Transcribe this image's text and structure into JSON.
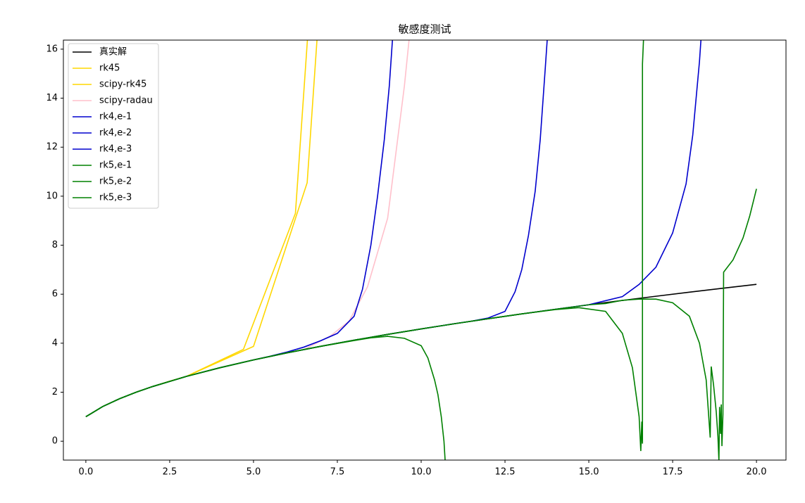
{
  "chart_data": {
    "type": "line",
    "title": "敏感度测试",
    "xlim": [
      -0.67,
      20.88
    ],
    "ylim": [
      -0.77,
      16.37
    ],
    "xticks": [
      {
        "value": 0,
        "label": "0.0"
      },
      {
        "value": 2.5,
        "label": "2.5"
      },
      {
        "value": 5,
        "label": "5.0"
      },
      {
        "value": 7.5,
        "label": "7.5"
      },
      {
        "value": 10,
        "label": "10.0"
      },
      {
        "value": 12.5,
        "label": "12.5"
      },
      {
        "value": 15,
        "label": "15.0"
      },
      {
        "value": 17.5,
        "label": "17.5"
      },
      {
        "value": 20,
        "label": "20.0"
      }
    ],
    "yticks": [
      0,
      2,
      4,
      6,
      8,
      10,
      12,
      14,
      16
    ],
    "legend": "upper left",
    "series": [
      {
        "name": "真实解",
        "color": "#000000",
        "x": [
          0,
          0.5,
          1,
          1.5,
          2,
          3,
          4,
          5,
          6,
          7,
          8,
          9,
          10,
          11,
          12,
          13,
          14,
          15,
          16,
          17,
          18,
          19,
          20
        ],
        "values": [
          1,
          1.414,
          1.732,
          2,
          2.236,
          2.646,
          3,
          3.317,
          3.606,
          3.873,
          4.123,
          4.359,
          4.583,
          4.796,
          5,
          5.196,
          5.385,
          5.568,
          5.745,
          5.916,
          6.083,
          6.245,
          6.403
        ]
      },
      {
        "name": "rk45",
        "color": "#ffd700",
        "x": [
          0,
          0.5,
          1,
          1.5,
          2,
          2.5,
          3,
          4.7,
          6.25,
          6.7
        ],
        "values": [
          1,
          1.414,
          1.732,
          2,
          2.236,
          2.449,
          2.646,
          3.75,
          9.3,
          18.2
        ]
      },
      {
        "name": "scipy-rk45",
        "color": "#ffd700",
        "x": [
          0,
          0.5,
          1,
          1.5,
          2,
          2.5,
          3,
          5,
          6.6,
          7
        ],
        "values": [
          1,
          1.414,
          1.732,
          2,
          2.236,
          2.449,
          2.646,
          3.87,
          10.55,
          18.5
        ]
      },
      {
        "name": "scipy-radau",
        "color": "#ffc0cb",
        "x": [
          0,
          0.5,
          1,
          1.5,
          2,
          3,
          4,
          5,
          6,
          6.5,
          7.3,
          7.85,
          8.4,
          9,
          9.5,
          9.7
        ],
        "values": [
          1,
          1.414,
          1.732,
          2,
          2.236,
          2.646,
          3,
          3.317,
          3.606,
          3.74,
          4.3,
          4.9,
          6.3,
          9.1,
          14.5,
          17.2
        ]
      },
      {
        "name": "rk4,e-1",
        "color": "#0000cd",
        "x": [
          0,
          0.5,
          1,
          1.5,
          2,
          3,
          4,
          5,
          5.5,
          6,
          6.5,
          7,
          7.5,
          8,
          8.25,
          8.5,
          8.7,
          8.9,
          9.05,
          9.15,
          9.25
        ],
        "values": [
          1,
          1.414,
          1.732,
          2,
          2.236,
          2.646,
          3,
          3.32,
          3.47,
          3.64,
          3.84,
          4.1,
          4.4,
          5.1,
          6.2,
          8,
          10,
          12.3,
          14.5,
          16.5,
          18.5
        ]
      },
      {
        "name": "rk4,e-2",
        "color": "#0000cd",
        "x": [
          0,
          0.5,
          1,
          1.5,
          2,
          3,
          4,
          5,
          6,
          7,
          8,
          9,
          10,
          11,
          11.5,
          12,
          12.5,
          12.8,
          13,
          13.2,
          13.4,
          13.55,
          13.7,
          13.8
        ],
        "values": [
          1,
          1.414,
          1.732,
          2,
          2.236,
          2.646,
          3,
          3.317,
          3.606,
          3.873,
          4.123,
          4.359,
          4.583,
          4.8,
          4.9,
          5.03,
          5.3,
          6.1,
          7,
          8.4,
          10.2,
          12.3,
          15.2,
          17.2
        ]
      },
      {
        "name": "rk4,e-3",
        "color": "#0000cd",
        "x": [
          0,
          0.5,
          1,
          1.5,
          2,
          3,
          4,
          5,
          6,
          7,
          8,
          9,
          10,
          11,
          12,
          13,
          14,
          15,
          16,
          16.5,
          17,
          17.5,
          17.9,
          18.1,
          18.3,
          18.4
        ],
        "values": [
          1,
          1.414,
          1.732,
          2,
          2.236,
          2.646,
          3,
          3.317,
          3.606,
          3.873,
          4.123,
          4.359,
          4.583,
          4.796,
          5,
          5.196,
          5.385,
          5.57,
          5.9,
          6.4,
          7.1,
          8.5,
          10.5,
          12.5,
          15.5,
          17.5
        ]
      },
      {
        "name": "rk5,e-1",
        "color": "#008000",
        "x": [
          0,
          0.5,
          1,
          1.5,
          2,
          3,
          4,
          5,
          6,
          7,
          8,
          8.5,
          9,
          9.5,
          10,
          10.2,
          10.4,
          10.5,
          10.6,
          10.68,
          10.72
        ],
        "values": [
          1,
          1.414,
          1.732,
          2,
          2.236,
          2.646,
          3,
          3.317,
          3.606,
          3.873,
          4.11,
          4.22,
          4.28,
          4.2,
          3.9,
          3.4,
          2.5,
          1.9,
          1,
          0,
          -0.9
        ]
      },
      {
        "name": "rk5,e-2",
        "color": "#008000",
        "x": [
          0,
          0.5,
          1,
          1.5,
          2,
          3,
          4,
          5,
          6,
          7,
          8,
          9,
          10,
          11,
          12,
          13,
          14,
          14.7,
          15.5,
          16,
          16.3,
          16.5,
          16.55,
          16.58,
          16.6,
          16.6,
          16.65
        ],
        "values": [
          1,
          1.414,
          1.732,
          2,
          2.236,
          2.646,
          3,
          3.317,
          3.606,
          3.873,
          4.123,
          4.359,
          4.583,
          4.796,
          5,
          5.196,
          5.37,
          5.45,
          5.3,
          4.4,
          3,
          1,
          -0.4,
          0.8,
          -0.1,
          15.4,
          17
        ]
      },
      {
        "name": "rk5,e-3",
        "color": "#008000",
        "x": [
          0,
          0.5,
          1,
          1.5,
          2,
          3,
          4,
          5,
          6,
          7,
          8,
          9,
          10,
          11,
          12,
          13,
          14,
          15,
          15.5,
          16,
          16.5,
          17,
          17.5,
          18,
          18.3,
          18.5,
          18.62,
          18.65,
          18.72,
          18.8,
          18.85,
          18.88,
          18.9,
          18.93,
          18.95,
          18.97,
          19,
          19.02,
          19.3,
          19.6,
          19.8,
          20
        ],
        "values": [
          1,
          1.414,
          1.732,
          2,
          2.236,
          2.646,
          3,
          3.317,
          3.606,
          3.873,
          4.123,
          4.359,
          4.583,
          4.796,
          5,
          5.196,
          5.385,
          5.568,
          5.62,
          5.75,
          5.8,
          5.8,
          5.65,
          5.1,
          4,
          2.5,
          0.15,
          3.05,
          2.3,
          1.2,
          0.2,
          -0.8,
          1.4,
          0.3,
          1.5,
          -0.2,
          1.1,
          6.9,
          7.4,
          8.3,
          9.2,
          10.3
        ]
      }
    ]
  }
}
